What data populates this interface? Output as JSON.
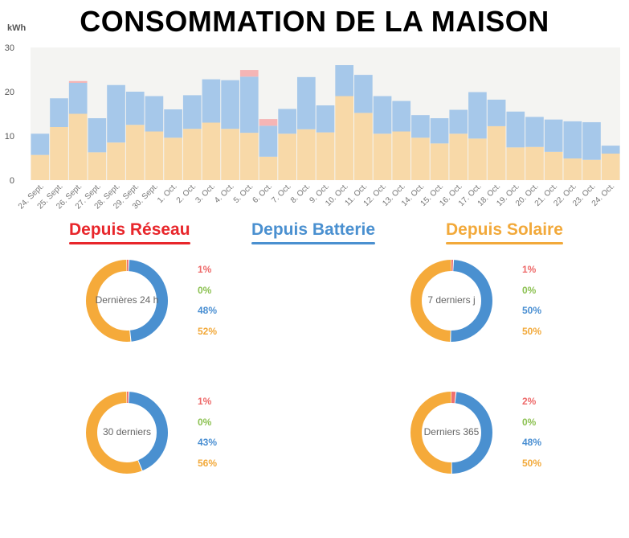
{
  "title": "CONSOMMATION DE LA MAISON",
  "legend": {
    "reseau": "Depuis Réseau",
    "batterie": "Depuis Batterie",
    "solaire": "Depuis Solaire"
  },
  "colors": {
    "reseau": "#f5b5b5",
    "batterie": "#a6c8ea",
    "solaire": "#f8d9a8",
    "donut_reseau": "#ef6f6f",
    "donut_batterie": "#4a90d0",
    "donut_solaire": "#f5aa3a",
    "pct_reseau": "#ee6a6a",
    "pct_grid": "#8cc152",
    "pct_batterie": "#4a8fd2",
    "pct_solaire": "#f2a93a"
  },
  "chart_data": {
    "type": "bar",
    "stacked": true,
    "ylabel": "kWh",
    "ylim": [
      0,
      30
    ],
    "yticks": [
      "0",
      "10",
      "20",
      "30"
    ],
    "categories": [
      "24. Sept.",
      "25. Sept.",
      "26. Sept.",
      "27. Sept.",
      "28. Sept.",
      "29. Sept.",
      "30. Sept.",
      "1. Oct.",
      "2. Oct.",
      "3. Oct.",
      "4. Oct.",
      "5. Oct.",
      "6. Oct.",
      "7. Oct.",
      "8. Oct.",
      "9. Oct.",
      "10. Oct.",
      "11. Oct.",
      "12. Oct.",
      "13. Oct.",
      "14. Oct.",
      "15. Oct.",
      "16. Oct.",
      "17. Oct.",
      "18. Oct.",
      "19. Oct.",
      "20. Oct.",
      "21. Oct.",
      "22. Oct.",
      "23. Oct.",
      "24. Oct."
    ],
    "series": [
      {
        "key": "solaire",
        "values": [
          5.7,
          12,
          15,
          6.3,
          8.5,
          12.5,
          11,
          9.6,
          11.6,
          13,
          11.6,
          10.7,
          5.3,
          10.5,
          11.5,
          10.8,
          19,
          15.2,
          10.5,
          11,
          9.6,
          8.3,
          10.5,
          9.4,
          12.2,
          7.4,
          7.5,
          6.4,
          4.9,
          4.6,
          6
        ]
      },
      {
        "key": "batterie",
        "values": [
          4.8,
          6.5,
          7,
          7.7,
          13,
          7.5,
          8,
          6.4,
          7.6,
          9.8,
          11,
          12.7,
          7,
          5.6,
          11.8,
          6.1,
          7,
          8.6,
          8.5,
          6.9,
          5.1,
          5.7,
          5.4,
          10.5,
          6,
          8.1,
          6.8,
          7.3,
          8.4,
          8.5,
          1.8
        ]
      },
      {
        "key": "reseau",
        "values": [
          0,
          0,
          0.4,
          0,
          0,
          0,
          0,
          0,
          0,
          0,
          0,
          1.5,
          1.5,
          0,
          0,
          0,
          0,
          0,
          0,
          0,
          0,
          0,
          0,
          0,
          0,
          0,
          0,
          0,
          0,
          0,
          0
        ]
      }
    ]
  },
  "donuts": [
    {
      "label": "Dernières 24 h",
      "reseau": 1,
      "batterie": 48,
      "solaire": 52,
      "pct": [
        "1%",
        "0%",
        "48%",
        "52%"
      ]
    },
    {
      "label": "7 derniers j",
      "reseau": 1,
      "batterie": 50,
      "solaire": 50,
      "pct": [
        "1%",
        "0%",
        "50%",
        "50%"
      ]
    },
    {
      "label": "30 derniers",
      "reseau": 1,
      "batterie": 43,
      "solaire": 56,
      "pct": [
        "1%",
        "0%",
        "43%",
        "56%"
      ]
    },
    {
      "label": "Derniers 365",
      "reseau": 2,
      "batterie": 48,
      "solaire": 50,
      "pct": [
        "2%",
        "0%",
        "48%",
        "50%"
      ]
    }
  ]
}
